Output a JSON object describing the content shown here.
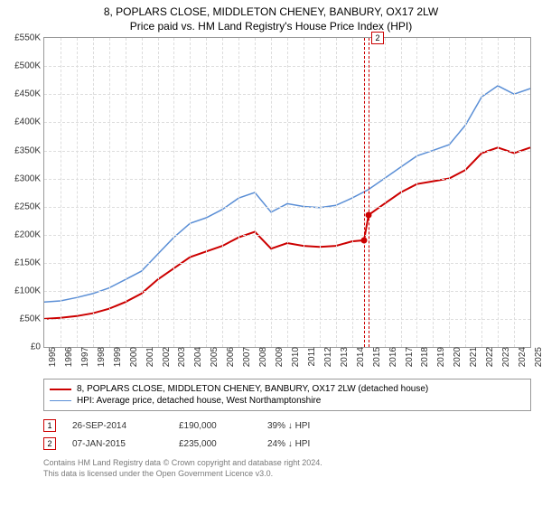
{
  "title": {
    "line1": "8, POPLARS CLOSE, MIDDLETON CHENEY, BANBURY, OX17 2LW",
    "line2": "Price paid vs. HM Land Registry's House Price Index (HPI)",
    "fontsize": 12,
    "color": "#000000"
  },
  "chart": {
    "type": "line",
    "background_color": "#ffffff",
    "grid_color": "#dddddd",
    "border_color": "#999999",
    "y": {
      "min": 0,
      "max": 550000,
      "ticks": [
        0,
        50000,
        100000,
        150000,
        200000,
        250000,
        300000,
        350000,
        400000,
        450000,
        500000,
        550000
      ],
      "labels": [
        "£0",
        "£50K",
        "£100K",
        "£150K",
        "£200K",
        "£250K",
        "£300K",
        "£350K",
        "£400K",
        "£450K",
        "£500K",
        "£550K"
      ],
      "label_fontsize": 10
    },
    "x": {
      "min": 1995,
      "max": 2025,
      "ticks": [
        1995,
        1996,
        1997,
        1998,
        1999,
        2000,
        2001,
        2002,
        2003,
        2004,
        2005,
        2006,
        2007,
        2008,
        2009,
        2010,
        2011,
        2012,
        2013,
        2014,
        2015,
        2016,
        2017,
        2018,
        2019,
        2020,
        2021,
        2022,
        2023,
        2024,
        2025
      ],
      "labels": [
        "1995",
        "1996",
        "1997",
        "1998",
        "1999",
        "2000",
        "2001",
        "2002",
        "2003",
        "2004",
        "2005",
        "2006",
        "2007",
        "2008",
        "2009",
        "2010",
        "2011",
        "2012",
        "2013",
        "2014",
        "2015",
        "2016",
        "2017",
        "2018",
        "2019",
        "2020",
        "2021",
        "2022",
        "2023",
        "2024",
        "2025"
      ],
      "label_fontsize": 10,
      "label_rotation": -90
    },
    "series": [
      {
        "name": "8, POPLARS CLOSE, MIDDLETON CHENEY, BANBURY, OX17 2LW (detached house)",
        "color": "#cc0000",
        "line_width": 2,
        "points": [
          [
            1995,
            50000
          ],
          [
            1996,
            52000
          ],
          [
            1997,
            55000
          ],
          [
            1998,
            60000
          ],
          [
            1999,
            68000
          ],
          [
            2000,
            80000
          ],
          [
            2001,
            95000
          ],
          [
            2002,
            120000
          ],
          [
            2003,
            140000
          ],
          [
            2004,
            160000
          ],
          [
            2005,
            170000
          ],
          [
            2006,
            180000
          ],
          [
            2007,
            195000
          ],
          [
            2008,
            205000
          ],
          [
            2009,
            175000
          ],
          [
            2010,
            185000
          ],
          [
            2011,
            180000
          ],
          [
            2012,
            178000
          ],
          [
            2013,
            180000
          ],
          [
            2014,
            188000
          ],
          [
            2014.74,
            190000
          ],
          [
            2015.02,
            235000
          ],
          [
            2016,
            255000
          ],
          [
            2017,
            275000
          ],
          [
            2018,
            290000
          ],
          [
            2019,
            295000
          ],
          [
            2020,
            300000
          ],
          [
            2021,
            315000
          ],
          [
            2022,
            345000
          ],
          [
            2023,
            355000
          ],
          [
            2024,
            345000
          ],
          [
            2025,
            355000
          ]
        ]
      },
      {
        "name": "HPI: Average price, detached house, West Northamptonshire",
        "color": "#5b8fd6",
        "line_width": 1.5,
        "points": [
          [
            1995,
            80000
          ],
          [
            1996,
            82000
          ],
          [
            1997,
            88000
          ],
          [
            1998,
            95000
          ],
          [
            1999,
            105000
          ],
          [
            2000,
            120000
          ],
          [
            2001,
            135000
          ],
          [
            2002,
            165000
          ],
          [
            2003,
            195000
          ],
          [
            2004,
            220000
          ],
          [
            2005,
            230000
          ],
          [
            2006,
            245000
          ],
          [
            2007,
            265000
          ],
          [
            2008,
            275000
          ],
          [
            2009,
            240000
          ],
          [
            2010,
            255000
          ],
          [
            2011,
            250000
          ],
          [
            2012,
            248000
          ],
          [
            2013,
            252000
          ],
          [
            2014,
            265000
          ],
          [
            2015,
            280000
          ],
          [
            2016,
            300000
          ],
          [
            2017,
            320000
          ],
          [
            2018,
            340000
          ],
          [
            2019,
            350000
          ],
          [
            2020,
            360000
          ],
          [
            2021,
            395000
          ],
          [
            2022,
            445000
          ],
          [
            2023,
            465000
          ],
          [
            2024,
            450000
          ],
          [
            2025,
            460000
          ]
        ]
      }
    ],
    "markers": [
      {
        "n": "1",
        "x": 2014.74,
        "y": 190000,
        "color": "#cc0000",
        "dot": true
      },
      {
        "n": "2",
        "x": 2015.02,
        "y": 235000,
        "color": "#cc0000",
        "dot": true,
        "box_top": true
      }
    ]
  },
  "legend": {
    "border_color": "#999999",
    "fontsize": 10,
    "items": [
      {
        "color": "#cc0000",
        "width": 2,
        "label": "8, POPLARS CLOSE, MIDDLETON CHENEY, BANBURY, OX17 2LW (detached house)"
      },
      {
        "color": "#5b8fd6",
        "width": 1.5,
        "label": "HPI: Average price, detached house, West Northamptonshire"
      }
    ]
  },
  "transactions": {
    "fontsize": 10,
    "rows": [
      {
        "n": "1",
        "color": "#cc0000",
        "date": "26-SEP-2014",
        "price": "£190,000",
        "pct": "39% ↓ HPI"
      },
      {
        "n": "2",
        "color": "#cc0000",
        "date": "07-JAN-2015",
        "price": "£235,000",
        "pct": "24% ↓ HPI"
      }
    ]
  },
  "footer": {
    "line1": "Contains HM Land Registry data © Crown copyright and database right 2024.",
    "line2": "This data is licensed under the Open Government Licence v3.0.",
    "color": "#7a7a7a",
    "fontsize": 9
  }
}
